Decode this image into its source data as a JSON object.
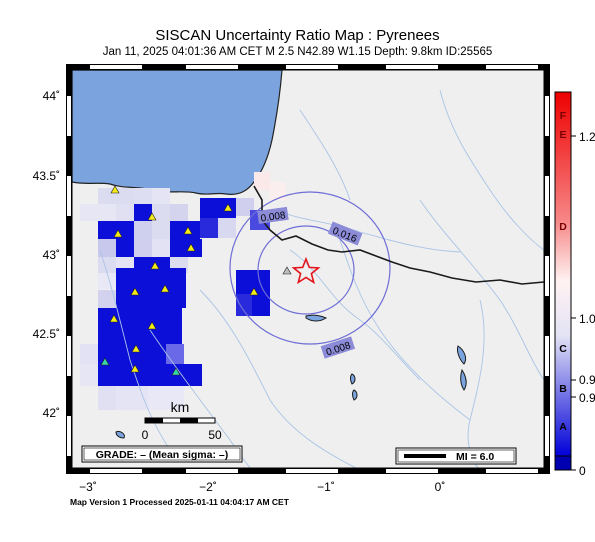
{
  "header": {
    "title": "SISCAN Uncertainty Ratio Map : Pyrenees",
    "subtitle": "Jan 11, 2025 04:01:36 AM CET   M 2.5   N42.89 W1.15   Depth: 9.8km   ID:25565"
  },
  "map": {
    "lat_ticks": [
      "44˚",
      "43.5˚",
      "43˚",
      "42.5˚",
      "42˚"
    ],
    "lon_ticks": [
      "−3˚",
      "−2˚",
      "−1˚",
      "0˚"
    ],
    "contour_labels": [
      "0.008",
      "0.016",
      "0.008"
    ],
    "scale_bar": {
      "unit": "km",
      "ticks": [
        "0",
        "50"
      ]
    },
    "grade_box": "GRADE: – (Mean sigma: –)",
    "mi_legend": "MI = 6.0",
    "colors": {
      "sea": "#7ba4de",
      "land": "#efefef",
      "cell_strong": "#0b0fd8",
      "epicenter": "#e4141b",
      "border": "#1a1a1a",
      "rivers": "#a9c4e6"
    }
  },
  "colorbar": {
    "letters": [
      "F",
      "E",
      "D",
      "C",
      "B",
      "A"
    ],
    "values": [
      "1.2",
      "1.0",
      "0.9",
      "0.9",
      "0"
    ]
  },
  "footer": {
    "processed": "Map Version 1 Processed 2025-01-11 04:04:17 AM CET"
  }
}
